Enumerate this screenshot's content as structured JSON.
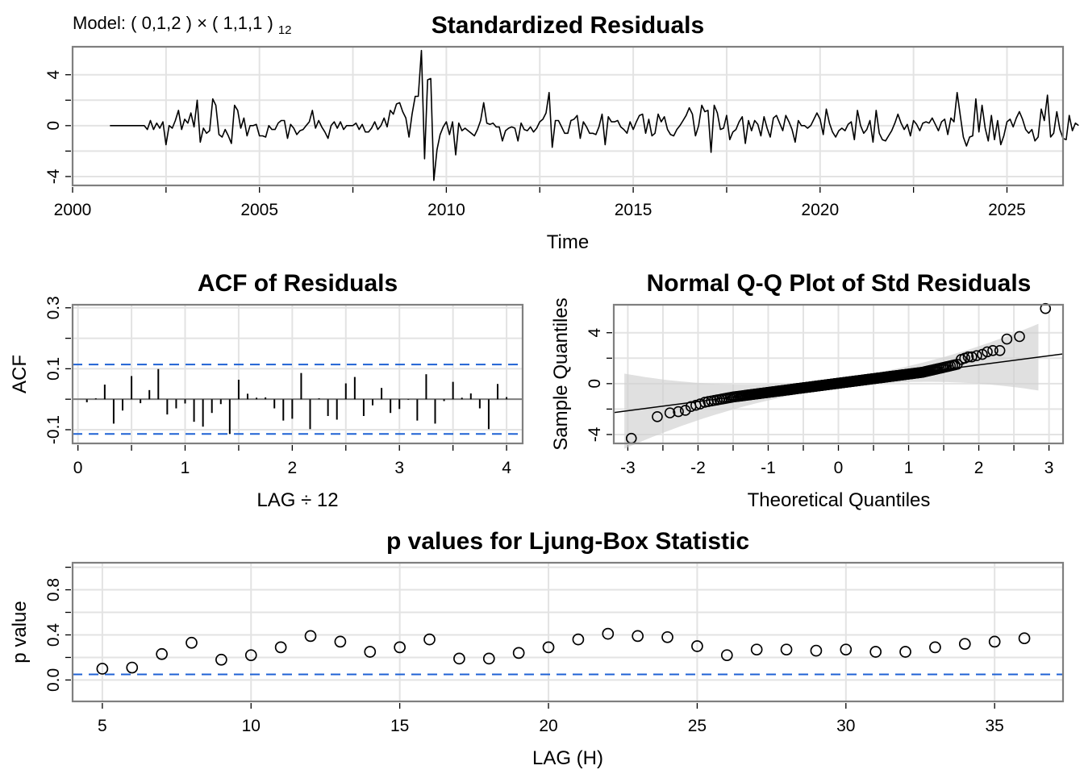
{
  "model_label": {
    "text": "Model: ( 0,1,2 ) × ( 1,1,1 )",
    "subscript": "12"
  },
  "chart_data": [
    {
      "id": "std-residuals",
      "type": "line",
      "title": "Standardized Residuals",
      "xlabel": "Time",
      "ylabel": "",
      "xlim": [
        2000,
        2026.5
      ],
      "ylim": [
        -4.7,
        6.2
      ],
      "x_ticks": [
        2000,
        2005,
        2010,
        2015,
        2020,
        2025
      ],
      "x_tick_labels": [
        "2000",
        "2005",
        "2010",
        "2015",
        "2020",
        "2025"
      ],
      "y_ticks": [
        -4,
        0,
        4
      ],
      "y_tick_labels": [
        "-4",
        "0",
        "4"
      ],
      "grid": true,
      "x_start": 2001.0,
      "x_step": 0.0833333,
      "series": [
        {
          "name": "residuals",
          "values": [
            0,
            0,
            0,
            0,
            0,
            0,
            0,
            0,
            0,
            0,
            0,
            0,
            -0.3,
            0.4,
            -0.3,
            0.2,
            -0.2,
            0.3,
            -1.5,
            0.0,
            -0.2,
            0.4,
            1.2,
            -0.3,
            0.5,
            0.2,
            1.0,
            -0.1,
            2.0,
            -1.3,
            -0.2,
            -0.6,
            -0.4,
            2.1,
            1.6,
            -0.7,
            -0.9,
            -0.3,
            -0.8,
            -1.4,
            1.6,
            1.2,
            -0.2,
            0.6,
            -0.8,
            0.0,
            0.0,
            0.1,
            -0.8,
            -0.8,
            -0.9,
            0.0,
            -0.3,
            -0.3,
            0.2,
            0.4,
            0.4,
            -1.0,
            0.1,
            -0.2,
            -0.7,
            -0.4,
            -0.3,
            0.0,
            0.3,
            1.2,
            -0.2,
            0.4,
            -0.1,
            -0.5,
            -1.0,
            0.0,
            0.3,
            -0.2,
            0.3,
            -0.3,
            0.0,
            0.0,
            0.0,
            0.2,
            -0.3,
            0.1,
            -0.5,
            -0.5,
            -0.2,
            0.3,
            -0.3,
            0.0,
            0.6,
            -0.1,
            1.2,
            0.9,
            1.7,
            1.8,
            1.1,
            0.6,
            -0.9,
            0.9,
            2.3,
            2.3,
            5.9,
            -2.6,
            3.6,
            3.7,
            -4.3,
            -1.9,
            -0.7,
            -0.1,
            0.3,
            -0.7,
            0.3,
            -2.3,
            0.2,
            -0.4,
            -0.2,
            -0.4,
            -0.6,
            -0.8,
            -0.3,
            0.4,
            1.8,
            0.2,
            0.1,
            0.2,
            -0.1,
            -0.1,
            -1.2,
            -0.4,
            -0.2,
            -0.1,
            -0.2,
            -1.2,
            0.2,
            -0.3,
            -0.4,
            -0.1,
            -0.5,
            -0.2,
            0.3,
            0.5,
            1.0,
            2.6,
            -1.7,
            0.4,
            0.4,
            -0.1,
            -0.6,
            -0.6,
            0.4,
            0.5,
            0.8,
            -1.0,
            0.3,
            -0.1,
            -0.6,
            -0.6,
            -0.7,
            -0.1,
            0.9,
            -1.5,
            0.7,
            0.3,
            0.3,
            0.4,
            -0.1,
            -0.3,
            -0.6,
            0.3,
            -0.3,
            0.3,
            0.8,
            0.9,
            -0.6,
            0.5,
            -0.8,
            -0.6,
            0.9,
            0.3,
            0.7,
            -0.3,
            -0.7,
            -0.8,
            -0.3,
            0.0,
            0.4,
            0.8,
            1.4,
            0.9,
            -0.8,
            0.0,
            1.6,
            1.1,
            1.2,
            -2.1,
            1.6,
            1.0,
            -0.3,
            -0.2,
            0.8,
            -1.1,
            -0.5,
            -0.3,
            0.3,
            0.7,
            -1.4,
            0.4,
            -0.4,
            0.4,
            0.1,
            -0.8,
            0.7,
            -0.2,
            -0.9,
            0.6,
            0.8,
            0.2,
            -0.4,
            0.8,
            0.3,
            -0.3,
            -1.3,
            0.4,
            0.0,
            0.0,
            -0.2,
            0.0,
            0.5,
            1.0,
            0.5,
            -0.7,
            1.3,
            0.2,
            -0.5,
            -0.9,
            -0.4,
            -0.2,
            -0.4,
            0.1,
            0.3,
            -1.1,
            1.2,
            0.0,
            -0.6,
            -0.3,
            0.4,
            -1.3,
            1.2,
            -0.6,
            -1.1,
            -1.2,
            -0.8,
            -0.4,
            0.2,
            0.9,
            0.2,
            -0.3,
            0.1,
            -0.8,
            0.4,
            0.1,
            -0.4,
            0.2,
            0.3,
            0.2,
            0.6,
            0.1,
            -0.4,
            0.3,
            0.5,
            -0.7,
            0.6,
            0.3,
            2.6,
            0.8,
            -0.9,
            -1.6,
            -0.9,
            -0.8,
            2.1,
            -0.5,
            1.6,
            -0.2,
            -1.2,
            0.8,
            -1.1,
            0.4,
            -1.5,
            -0.8,
            0.3,
            0.5,
            -0.1,
            0.6,
            1.1,
            0.5,
            -0.3,
            -0.6,
            -0.3,
            -1.2,
            -0.9,
            1.3,
            0.4,
            2.4,
            -0.9,
            -0.6,
            1.1,
            -0.3,
            -1.0,
            -1.1,
            0.8,
            -0.4,
            0.2,
            0.0
          ]
        }
      ]
    },
    {
      "id": "acf-residuals",
      "type": "bar",
      "title": "ACF of Residuals",
      "xlabel": "LAG ÷ 12",
      "ylabel": "ACF",
      "xlim": [
        -0.05,
        4.15
      ],
      "ylim": [
        -0.145,
        0.31
      ],
      "x_ticks": [
        0,
        1,
        2,
        3,
        4
      ],
      "x_tick_labels": [
        "0",
        "1",
        "2",
        "3",
        "4"
      ],
      "y_ticks": [
        -0.1,
        0.1,
        0.3
      ],
      "y_tick_labels": [
        "-0.1",
        "0.1",
        "0.3"
      ],
      "grid": true,
      "conf_bounds": [
        -0.114,
        0.114
      ],
      "lag_step": 0.0833333,
      "values": [
        -0.01,
        0.003,
        0.048,
        -0.08,
        -0.037,
        0.076,
        -0.013,
        0.03,
        0.099,
        -0.05,
        -0.03,
        -0.014,
        -0.074,
        -0.09,
        -0.045,
        -0.016,
        -0.114,
        0.064,
        0.018,
        0.005,
        0.006,
        -0.03,
        -0.07,
        -0.064,
        0.086,
        -0.098,
        0.003,
        -0.055,
        -0.067,
        0.052,
        0.073,
        -0.055,
        -0.02,
        0.037,
        -0.045,
        -0.032,
        -0.002,
        -0.07,
        0.082,
        -0.08,
        -0.006,
        0.057,
        0.005,
        0.019,
        -0.03,
        -0.098,
        0.05,
        0.007
      ]
    },
    {
      "id": "qq-plot",
      "type": "scatter",
      "title": "Normal Q-Q Plot of Std Residuals",
      "xlabel": "Theoretical Quantiles",
      "ylabel": "Sample Quantiles",
      "xlim": [
        -3.2,
        3.2
      ],
      "ylim": [
        -4.7,
        6.2
      ],
      "x_ticks": [
        -3,
        -2,
        -1,
        0,
        1,
        2,
        3
      ],
      "x_tick_labels": [
        "-3",
        "-2",
        "-1",
        "0",
        "1",
        "2",
        "3"
      ],
      "y_ticks": [
        -4,
        0,
        4
      ],
      "y_tick_labels": [
        "-4",
        "0",
        "4"
      ],
      "grid": true,
      "reference_line": {
        "intercept": 0.03,
        "slope": 0.72
      },
      "n_points": 298,
      "upper_tail": [
        [
          1.75,
          1.9
        ],
        [
          1.8,
          2.0
        ],
        [
          1.85,
          2.1
        ],
        [
          1.9,
          2.1
        ],
        [
          1.97,
          2.2
        ],
        [
          2.05,
          2.3
        ],
        [
          2.12,
          2.5
        ],
        [
          2.2,
          2.6
        ],
        [
          2.3,
          2.6
        ],
        [
          2.4,
          3.5
        ],
        [
          2.58,
          3.7
        ],
        [
          2.95,
          5.9
        ]
      ],
      "lower_tail": [
        [
          -2.95,
          -4.3
        ],
        [
          -2.58,
          -2.6
        ],
        [
          -2.4,
          -2.3
        ],
        [
          -2.28,
          -2.2
        ],
        [
          -2.18,
          -2.1
        ],
        [
          -2.1,
          -1.8
        ],
        [
          -2.03,
          -1.7
        ],
        [
          -1.97,
          -1.6
        ]
      ]
    },
    {
      "id": "ljung-box",
      "type": "scatter",
      "title": "p values for Ljung-Box Statistic",
      "xlabel": "LAG (H)",
      "ylabel": "p value",
      "xlim": [
        4,
        37.3
      ],
      "ylim": [
        -0.19,
        1.04
      ],
      "x_ticks": [
        5,
        10,
        15,
        20,
        25,
        30,
        35
      ],
      "x_tick_labels": [
        "5",
        "10",
        "15",
        "20",
        "25",
        "30",
        "35"
      ],
      "y_ticks": [
        0.0,
        0.4,
        0.8
      ],
      "y_tick_labels": [
        "0.0",
        "0.4",
        "0.8"
      ],
      "grid": true,
      "significance_line": 0.05,
      "x": [
        5,
        6,
        7,
        8,
        9,
        10,
        11,
        12,
        13,
        14,
        15,
        16,
        17,
        18,
        19,
        20,
        21,
        22,
        23,
        24,
        25,
        26,
        27,
        28,
        29,
        30,
        31,
        32,
        33,
        34,
        35,
        36
      ],
      "values": [
        0.1,
        0.11,
        0.23,
        0.33,
        0.18,
        0.22,
        0.29,
        0.39,
        0.34,
        0.25,
        0.29,
        0.36,
        0.19,
        0.19,
        0.24,
        0.29,
        0.36,
        0.41,
        0.39,
        0.38,
        0.3,
        0.22,
        0.27,
        0.27,
        0.26,
        0.27,
        0.25,
        0.25,
        0.29,
        0.32,
        0.34,
        0.37
      ]
    }
  ]
}
